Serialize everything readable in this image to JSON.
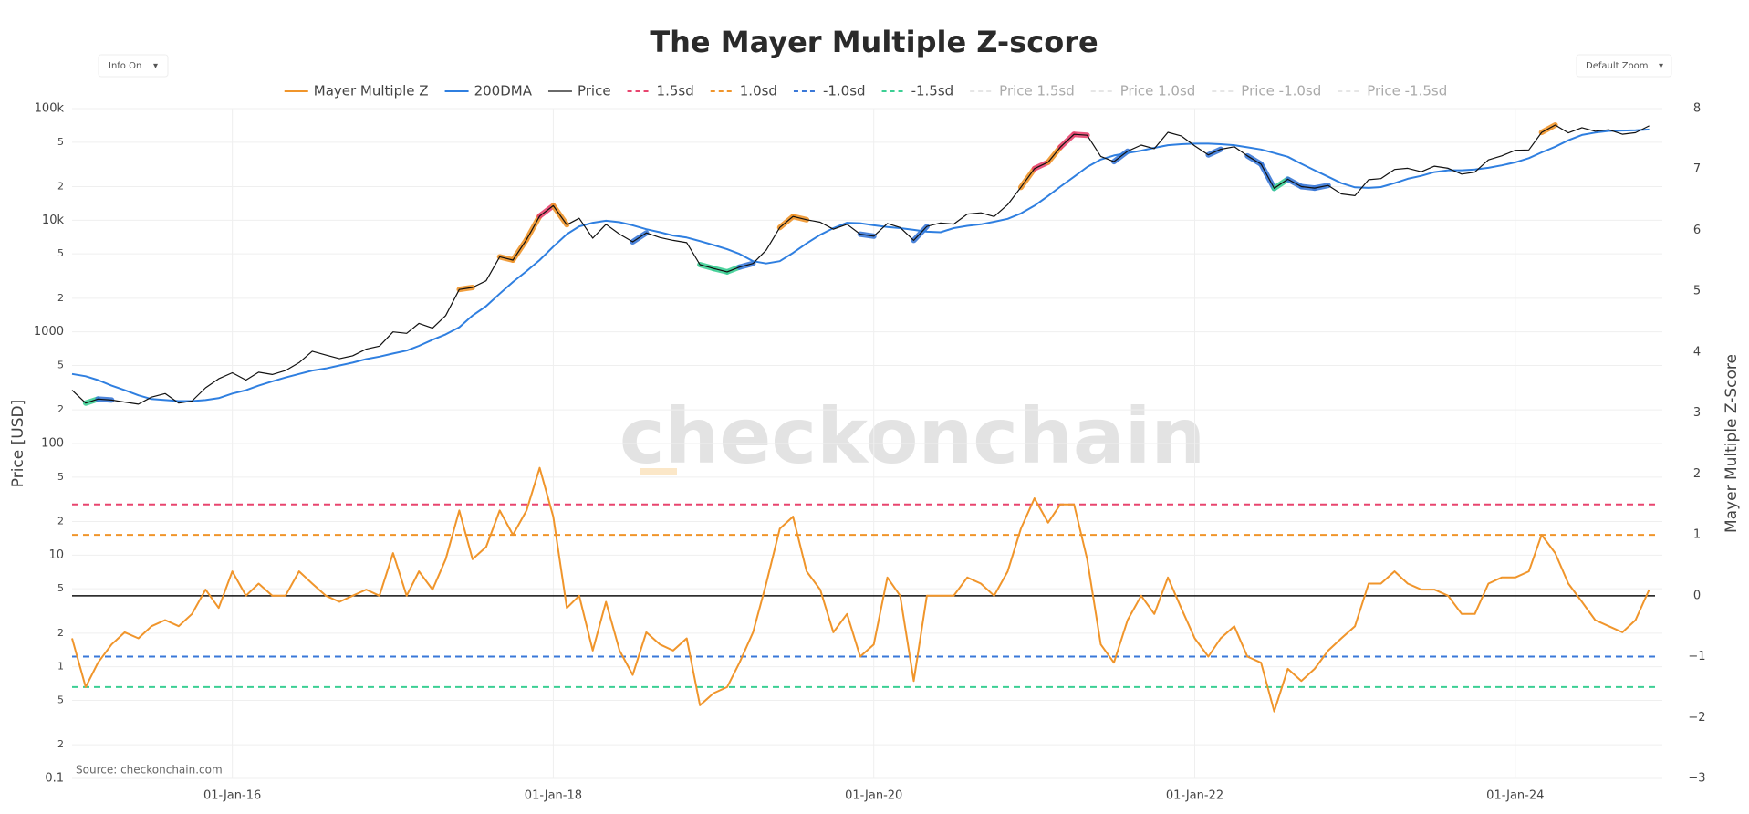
{
  "chart_data": {
    "type": "line",
    "title": "The Mayer Multiple Z-score",
    "source": "Source: checkonchain.com",
    "watermark": "checkonchain",
    "controls": [
      "Info On",
      "Default Zoom"
    ],
    "yaxis_title": "Price [USD]",
    "y2axis_title": "Mayer Multiple Z-Score",
    "log_y": true,
    "grid": true,
    "x": [
      "2015-01-01",
      "2015-02-01",
      "2015-03-01",
      "2015-04-01",
      "2015-05-01",
      "2015-06-01",
      "2015-07-01",
      "2015-08-01",
      "2015-09-01",
      "2015-10-01",
      "2015-11-01",
      "2015-12-01",
      "2016-01-01",
      "2016-02-01",
      "2016-03-01",
      "2016-04-01",
      "2016-05-01",
      "2016-06-01",
      "2016-07-01",
      "2016-08-01",
      "2016-09-01",
      "2016-10-01",
      "2016-11-01",
      "2016-12-01",
      "2017-01-01",
      "2017-02-01",
      "2017-03-01",
      "2017-04-01",
      "2017-05-01",
      "2017-06-01",
      "2017-07-01",
      "2017-08-01",
      "2017-09-01",
      "2017-10-01",
      "2017-11-01",
      "2017-12-01",
      "2018-01-01",
      "2018-02-01",
      "2018-03-01",
      "2018-04-01",
      "2018-05-01",
      "2018-06-01",
      "2018-07-01",
      "2018-08-01",
      "2018-09-01",
      "2018-10-01",
      "2018-11-01",
      "2018-12-01",
      "2019-01-01",
      "2019-02-01",
      "2019-03-01",
      "2019-04-01",
      "2019-05-01",
      "2019-06-01",
      "2019-07-01",
      "2019-08-01",
      "2019-09-01",
      "2019-10-01",
      "2019-11-01",
      "2019-12-01",
      "2020-01-01",
      "2020-02-01",
      "2020-03-01",
      "2020-04-01",
      "2020-05-01",
      "2020-06-01",
      "2020-07-01",
      "2020-08-01",
      "2020-09-01",
      "2020-10-01",
      "2020-11-01",
      "2020-12-01",
      "2021-01-01",
      "2021-02-01",
      "2021-03-01",
      "2021-04-01",
      "2021-05-01",
      "2021-06-01",
      "2021-07-01",
      "2021-08-01",
      "2021-09-01",
      "2021-10-01",
      "2021-11-01",
      "2021-12-01",
      "2022-01-01",
      "2022-02-01",
      "2022-03-01",
      "2022-04-01",
      "2022-05-01",
      "2022-06-01",
      "2022-07-01",
      "2022-08-01",
      "2022-09-01",
      "2022-10-01",
      "2022-11-01",
      "2022-12-01",
      "2023-01-01",
      "2023-02-01",
      "2023-03-01",
      "2023-04-01",
      "2023-05-01",
      "2023-06-01",
      "2023-07-01",
      "2023-08-01",
      "2023-09-01",
      "2023-10-01",
      "2023-11-01",
      "2023-12-01",
      "2024-01-01",
      "2024-02-01",
      "2024-03-01",
      "2024-04-01",
      "2024-05-01",
      "2024-06-01",
      "2024-07-01",
      "2024-08-01",
      "2024-09-01",
      "2024-10-01",
      "2024-11-01"
    ],
    "series": [
      {
        "name": "Mayer Multiple Z",
        "color": "#f0952b",
        "axis": "y2",
        "values": [
          -0.7,
          -1.5,
          -1.1,
          -0.8,
          -0.6,
          -0.7,
          -0.5,
          -0.4,
          -0.5,
          -0.3,
          0.1,
          -0.2,
          0.4,
          0.0,
          0.2,
          0.0,
          0.0,
          0.4,
          0.2,
          0.0,
          -0.1,
          0.0,
          0.1,
          0.0,
          0.7,
          0.0,
          0.4,
          0.1,
          0.6,
          1.4,
          0.6,
          0.8,
          1.4,
          1.0,
          1.4,
          2.1,
          1.3,
          -0.2,
          0.0,
          -0.9,
          -0.1,
          -0.9,
          -1.3,
          -0.6,
          -0.8,
          -0.9,
          -0.7,
          -1.8,
          -1.6,
          -1.5,
          -1.1,
          -0.6,
          0.2,
          1.1,
          1.3,
          0.4,
          0.1,
          -0.6,
          -0.3,
          -1.0,
          -0.8,
          0.3,
          0.0,
          -1.4,
          0.0,
          0.0,
          0.0,
          0.3,
          0.2,
          0.0,
          0.4,
          1.1,
          1.6,
          1.2,
          1.5,
          1.5,
          0.6,
          -0.8,
          -1.1,
          -0.4,
          0.0,
          -0.3,
          0.3,
          -0.2,
          -0.7,
          -1.0,
          -0.7,
          -0.5,
          -1.0,
          -1.1,
          -1.9,
          -1.2,
          -1.4,
          -1.2,
          -0.9,
          -0.7,
          -0.5,
          0.2,
          0.2,
          0.4,
          0.2,
          0.1,
          0.1,
          0.0,
          -0.3,
          -0.3,
          0.2,
          0.3,
          0.3,
          0.4,
          1.0,
          0.7,
          0.2,
          -0.1,
          -0.4,
          -0.5,
          -0.6,
          -0.4,
          0.1
        ]
      },
      {
        "name": "200DMA",
        "color": "#2f7fe0",
        "values": [
          420,
          400,
          370,
          330,
          300,
          270,
          250,
          245,
          240,
          240,
          245,
          255,
          280,
          300,
          330,
          360,
          390,
          420,
          450,
          470,
          500,
          530,
          570,
          600,
          640,
          680,
          750,
          850,
          950,
          1100,
          1400,
          1700,
          2200,
          2800,
          3500,
          4400,
          5800,
          7500,
          8800,
          9500,
          9900,
          9600,
          9000,
          8300,
          7800,
          7300,
          7000,
          6500,
          6000,
          5500,
          5000,
          4300,
          4100,
          4300,
          5100,
          6200,
          7400,
          8500,
          9500,
          9400,
          9000,
          8700,
          8500,
          8200,
          7900,
          7800,
          8500,
          8900,
          9200,
          9700,
          10300,
          11500,
          13500,
          16500,
          20000,
          24500,
          30000,
          35000,
          38000,
          40000,
          42000,
          44500,
          47000,
          48000,
          48500,
          48500,
          48000,
          47000,
          45000,
          43000,
          40000,
          37000,
          32000,
          28000,
          24500,
          21500,
          19700,
          19500,
          19800,
          21500,
          23500,
          25000,
          27000,
          28000,
          28000,
          28500,
          29500,
          31000,
          33000,
          36000,
          40500,
          45500,
          52000,
          58000,
          61000,
          63000,
          63500,
          64000,
          65000
        ]
      },
      {
        "name": "Price",
        "color": "#111111",
        "values": [
          300,
          230,
          250,
          245,
          235,
          225,
          260,
          280,
          230,
          240,
          315,
          380,
          430,
          370,
          435,
          415,
          450,
          530,
          670,
          620,
          575,
          610,
          700,
          745,
          1000,
          970,
          1190,
          1080,
          1400,
          2400,
          2500,
          2870,
          4700,
          4400,
          6700,
          10900,
          13500,
          9100,
          10400,
          6900,
          9200,
          7500,
          6400,
          7700,
          7000,
          6600,
          6300,
          4000,
          3700,
          3450,
          3800,
          4100,
          5400,
          8600,
          10800,
          10100,
          9600,
          8300,
          9200,
          7500,
          7200,
          9350,
          8600,
          6600,
          8800,
          9450,
          9230,
          11350,
          11650,
          10780,
          13800,
          19700,
          29000,
          33100,
          45200,
          58800,
          57700,
          37300,
          33500,
          41500,
          47100,
          43800,
          61300,
          57000,
          46300,
          38500,
          43200,
          45500,
          37700,
          31800,
          19300,
          23300,
          20000,
          19400,
          20500,
          17200,
          16600,
          23100,
          23600,
          28500,
          29200,
          27200,
          30500,
          29200,
          25900,
          27000,
          34700,
          37700,
          42300,
          42600,
          61200,
          71300,
          60600,
          67500,
          62700,
          64600,
          58900,
          60800,
          70000
        ]
      }
    ],
    "bands": [
      {
        "name": "1.5sd",
        "value": 1.5,
        "color": "#e8456f"
      },
      {
        "name": "1.0sd",
        "value": 1.0,
        "color": "#f0952b"
      },
      {
        "name": "-1.0sd",
        "value": -1.0,
        "color": "#3a78d8"
      },
      {
        "name": "-1.5sd",
        "value": -1.5,
        "color": "#3ccf94"
      }
    ],
    "hidden_series": [
      "Price 1.5sd",
      "Price 1.0sd",
      "Price -1.0sd",
      "Price -1.5sd"
    ],
    "xlim": [
      "2015-01-01",
      "2024-12-01"
    ],
    "xticks": [
      {
        "value": "2016-01-01",
        "label": "01-Jan-16"
      },
      {
        "value": "2018-01-01",
        "label": "01-Jan-18"
      },
      {
        "value": "2020-01-01",
        "label": "01-Jan-20"
      },
      {
        "value": "2022-01-01",
        "label": "01-Jan-22"
      },
      {
        "value": "2024-01-01",
        "label": "01-Jan-24"
      }
    ],
    "ylim": [
      0.1,
      100000
    ],
    "yticks": [
      0.1,
      {
        "value": 0.2,
        "label": "2"
      },
      {
        "value": 0.5,
        "label": "5"
      },
      1,
      {
        "value": 2,
        "label": "2"
      },
      {
        "value": 5,
        "label": "5"
      },
      10,
      {
        "value": 20,
        "label": "2"
      },
      {
        "value": 50,
        "label": "5"
      },
      100,
      {
        "value": 200,
        "label": "2"
      },
      {
        "value": 500,
        "label": "5"
      },
      1000,
      {
        "value": 2000,
        "label": "2"
      },
      {
        "value": 5000,
        "label": "5"
      },
      {
        "value": 10000,
        "label": "10k"
      },
      {
        "value": 20000,
        "label": "2"
      },
      {
        "value": 50000,
        "label": "5"
      },
      {
        "value": 100000,
        "label": "100k"
      }
    ],
    "y2lim": [
      -3,
      8
    ],
    "y2ticks": [
      {
        "value": -3,
        "label": "−3"
      },
      {
        "value": -2,
        "label": "−2"
      },
      {
        "value": -1,
        "label": "−1"
      },
      0,
      1,
      2,
      3,
      4,
      5,
      6,
      7,
      8
    ]
  }
}
